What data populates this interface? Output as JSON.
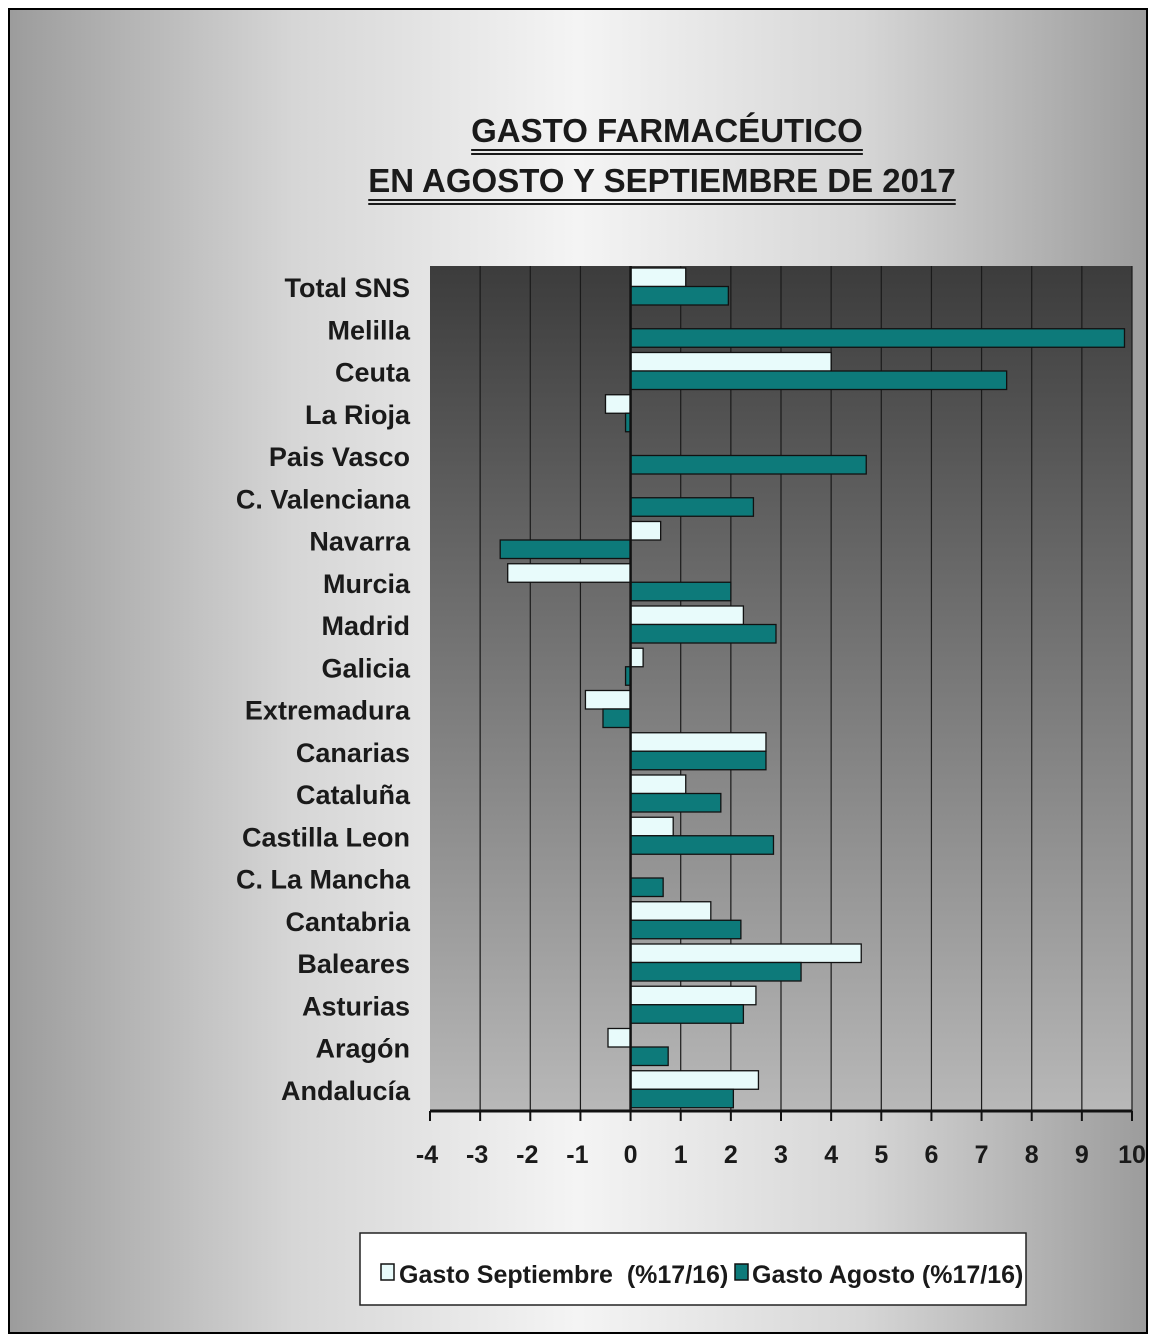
{
  "chart_data": {
    "type": "bar",
    "orientation": "horizontal",
    "title": [
      "GASTO FARMACÉUTICO",
      "EN AGOSTO Y SEPTIEMBRE DE 2017"
    ],
    "categories": [
      "Total SNS",
      "Melilla",
      "Ceuta",
      "La Rioja",
      "Pais Vasco",
      "C. Valenciana",
      "Navarra",
      "Murcia",
      "Madrid",
      "Galicia",
      "Extremadura",
      "Canarias",
      "Cataluña",
      "Castilla Leon",
      "C. La Mancha",
      "Cantabria",
      "Baleares",
      "Asturias",
      "Aragón",
      "Andalucía"
    ],
    "series": [
      {
        "name": "Gasto Septiembre  (%17/16)",
        "color": "#e8fbfb",
        "values": [
          1.1,
          0,
          4.0,
          -0.5,
          0,
          0,
          0.6,
          -2.45,
          2.25,
          0.25,
          -0.9,
          2.7,
          1.1,
          0.85,
          0,
          1.6,
          4.6,
          2.5,
          -0.45,
          2.55
        ]
      },
      {
        "name": "Gasto Agosto (%17/16)",
        "color": "#0d7a7a",
        "values": [
          1.95,
          9.85,
          7.5,
          -0.1,
          4.7,
          2.45,
          -2.6,
          2.0,
          2.9,
          -0.1,
          -0.55,
          2.7,
          1.8,
          2.85,
          0.65,
          2.2,
          3.4,
          2.25,
          0.75,
          2.05
        ]
      }
    ],
    "xlim": [
      -4,
      10
    ],
    "xticks": [
      "-4",
      "-3",
      "-2",
      "-1",
      "0",
      "1",
      "2",
      "3",
      "4",
      "5",
      "6",
      "7",
      "8",
      "9",
      "10"
    ],
    "grid": true,
    "legend": "bottom"
  }
}
